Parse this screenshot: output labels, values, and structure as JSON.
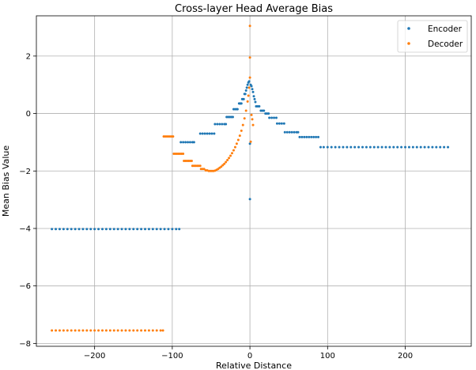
{
  "chart_data": {
    "type": "scatter",
    "title": "Cross-layer Head Average Bias",
    "xlabel": "Relative Distance",
    "ylabel": "Mean Bias Value",
    "xlim": [
      -275,
      285
    ],
    "ylim": [
      -8.1,
      3.4
    ],
    "xticks": [
      -200,
      -100,
      0,
      100,
      200
    ],
    "yticks": [
      -8,
      -6,
      -4,
      -2,
      0,
      2
    ],
    "xtick_labels": [
      "−200",
      "−100",
      "0",
      "100",
      "200"
    ],
    "ytick_labels": [
      "−8",
      "−6",
      "−4",
      "−2",
      "0",
      "2"
    ],
    "grid": true,
    "legend_position": "top-right",
    "series": [
      {
        "name": "Encoder",
        "color": "#1f77b4",
        "points": [
          [
            -255,
            -4.02
          ],
          [
            -250,
            -4.02
          ],
          [
            -245,
            -4.02
          ],
          [
            -240,
            -4.02
          ],
          [
            -235,
            -4.02
          ],
          [
            -230,
            -4.02
          ],
          [
            -225,
            -4.02
          ],
          [
            -220,
            -4.02
          ],
          [
            -215,
            -4.02
          ],
          [
            -210,
            -4.02
          ],
          [
            -205,
            -4.02
          ],
          [
            -200,
            -4.02
          ],
          [
            -195,
            -4.02
          ],
          [
            -190,
            -4.02
          ],
          [
            -185,
            -4.02
          ],
          [
            -180,
            -4.02
          ],
          [
            -175,
            -4.02
          ],
          [
            -170,
            -4.02
          ],
          [
            -165,
            -4.02
          ],
          [
            -160,
            -4.02
          ],
          [
            -155,
            -4.02
          ],
          [
            -150,
            -4.02
          ],
          [
            -145,
            -4.02
          ],
          [
            -140,
            -4.02
          ],
          [
            -135,
            -4.02
          ],
          [
            -130,
            -4.02
          ],
          [
            -125,
            -4.02
          ],
          [
            -120,
            -4.02
          ],
          [
            -115,
            -4.02
          ],
          [
            -110,
            -4.02
          ],
          [
            -105,
            -4.02
          ],
          [
            -100,
            -4.02
          ],
          [
            -95,
            -4.02
          ],
          [
            -91,
            -4.02
          ],
          [
            -89,
            -1.0
          ],
          [
            -86,
            -1.0
          ],
          [
            -83,
            -1.0
          ],
          [
            -80,
            -1.0
          ],
          [
            -77,
            -1.0
          ],
          [
            -74,
            -1.0
          ],
          [
            -72,
            -1.0
          ],
          [
            -64,
            -0.7
          ],
          [
            -61,
            -0.7
          ],
          [
            -58,
            -0.7
          ],
          [
            -55,
            -0.7
          ],
          [
            -52,
            -0.7
          ],
          [
            -49,
            -0.7
          ],
          [
            -46,
            -0.7
          ],
          [
            -45,
            -0.37
          ],
          [
            -42,
            -0.37
          ],
          [
            -39,
            -0.37
          ],
          [
            -36,
            -0.37
          ],
          [
            -33,
            -0.37
          ],
          [
            -31,
            -0.37
          ],
          [
            -30,
            -0.12
          ],
          [
            -28,
            -0.12
          ],
          [
            -26,
            -0.12
          ],
          [
            -24,
            -0.12
          ],
          [
            -22,
            -0.12
          ],
          [
            -21,
            0.15
          ],
          [
            -19,
            0.15
          ],
          [
            -17,
            0.15
          ],
          [
            -16,
            0.15
          ],
          [
            -14,
            0.35
          ],
          [
            -13,
            0.35
          ],
          [
            -12,
            0.35
          ],
          [
            -11,
            0.35
          ],
          [
            -10,
            0.5
          ],
          [
            -9,
            0.5
          ],
          [
            -8,
            0.5
          ],
          [
            -7,
            0.68
          ],
          [
            -6,
            0.68
          ],
          [
            -5,
            0.8
          ],
          [
            -4,
            0.9
          ],
          [
            -3,
            1.0
          ],
          [
            -2,
            1.08
          ],
          [
            -1,
            1.12
          ],
          [
            0,
            -1.05
          ],
          [
            0,
            -2.98
          ],
          [
            1,
            1.0
          ],
          [
            2,
            0.95
          ],
          [
            3,
            0.85
          ],
          [
            4,
            0.75
          ],
          [
            5,
            0.6
          ],
          [
            6,
            0.5
          ],
          [
            7,
            0.4
          ],
          [
            8,
            0.25
          ],
          [
            10,
            0.25
          ],
          [
            12,
            0.25
          ],
          [
            14,
            0.1
          ],
          [
            16,
            0.1
          ],
          [
            18,
            0.1
          ],
          [
            20,
            0.0
          ],
          [
            22,
            0.0
          ],
          [
            24,
            0.0
          ],
          [
            25,
            -0.15
          ],
          [
            28,
            -0.15
          ],
          [
            31,
            -0.15
          ],
          [
            34,
            -0.15
          ],
          [
            35,
            -0.35
          ],
          [
            38,
            -0.35
          ],
          [
            41,
            -0.35
          ],
          [
            44,
            -0.35
          ],
          [
            45,
            -0.65
          ],
          [
            48,
            -0.65
          ],
          [
            51,
            -0.65
          ],
          [
            54,
            -0.65
          ],
          [
            57,
            -0.65
          ],
          [
            60,
            -0.65
          ],
          [
            62,
            -0.65
          ],
          [
            64,
            -0.82
          ],
          [
            67,
            -0.82
          ],
          [
            70,
            -0.82
          ],
          [
            73,
            -0.82
          ],
          [
            76,
            -0.82
          ],
          [
            79,
            -0.82
          ],
          [
            82,
            -0.82
          ],
          [
            85,
            -0.82
          ],
          [
            88,
            -0.82
          ],
          [
            91,
            -1.17
          ],
          [
            95,
            -1.17
          ],
          [
            100,
            -1.17
          ],
          [
            105,
            -1.17
          ],
          [
            110,
            -1.17
          ],
          [
            115,
            -1.17
          ],
          [
            120,
            -1.17
          ],
          [
            125,
            -1.17
          ],
          [
            130,
            -1.17
          ],
          [
            135,
            -1.17
          ],
          [
            140,
            -1.17
          ],
          [
            145,
            -1.17
          ],
          [
            150,
            -1.17
          ],
          [
            155,
            -1.17
          ],
          [
            160,
            -1.17
          ],
          [
            165,
            -1.17
          ],
          [
            170,
            -1.17
          ],
          [
            175,
            -1.17
          ],
          [
            180,
            -1.17
          ],
          [
            185,
            -1.17
          ],
          [
            190,
            -1.17
          ],
          [
            195,
            -1.17
          ],
          [
            200,
            -1.17
          ],
          [
            205,
            -1.17
          ],
          [
            210,
            -1.17
          ],
          [
            215,
            -1.17
          ],
          [
            220,
            -1.17
          ],
          [
            225,
            -1.17
          ],
          [
            230,
            -1.17
          ],
          [
            235,
            -1.17
          ],
          [
            240,
            -1.17
          ],
          [
            245,
            -1.17
          ],
          [
            250,
            -1.17
          ],
          [
            255,
            -1.17
          ]
        ]
      },
      {
        "name": "Decoder",
        "color": "#ff7f0e",
        "points": [
          [
            -255,
            -7.55
          ],
          [
            -250,
            -7.55
          ],
          [
            -245,
            -7.55
          ],
          [
            -240,
            -7.55
          ],
          [
            -235,
            -7.55
          ],
          [
            -230,
            -7.55
          ],
          [
            -225,
            -7.55
          ],
          [
            -220,
            -7.55
          ],
          [
            -215,
            -7.55
          ],
          [
            -210,
            -7.55
          ],
          [
            -205,
            -7.55
          ],
          [
            -200,
            -7.55
          ],
          [
            -195,
            -7.55
          ],
          [
            -190,
            -7.55
          ],
          [
            -185,
            -7.55
          ],
          [
            -180,
            -7.55
          ],
          [
            -175,
            -7.55
          ],
          [
            -170,
            -7.55
          ],
          [
            -165,
            -7.55
          ],
          [
            -160,
            -7.55
          ],
          [
            -155,
            -7.55
          ],
          [
            -150,
            -7.55
          ],
          [
            -145,
            -7.55
          ],
          [
            -140,
            -7.55
          ],
          [
            -135,
            -7.55
          ],
          [
            -130,
            -7.55
          ],
          [
            -125,
            -7.55
          ],
          [
            -120,
            -7.55
          ],
          [
            -115,
            -7.55
          ],
          [
            -112,
            -7.55
          ],
          [
            -111,
            -0.8
          ],
          [
            -109,
            -0.8
          ],
          [
            -107,
            -0.8
          ],
          [
            -105,
            -0.8
          ],
          [
            -103,
            -0.8
          ],
          [
            -101,
            -0.8
          ],
          [
            -99,
            -0.8
          ],
          [
            -98,
            -1.4
          ],
          [
            -96,
            -1.4
          ],
          [
            -94,
            -1.4
          ],
          [
            -92,
            -1.4
          ],
          [
            -90,
            -1.4
          ],
          [
            -88,
            -1.4
          ],
          [
            -86,
            -1.4
          ],
          [
            -85,
            -1.65
          ],
          [
            -83,
            -1.65
          ],
          [
            -81,
            -1.65
          ],
          [
            -79,
            -1.65
          ],
          [
            -77,
            -1.65
          ],
          [
            -75,
            -1.65
          ],
          [
            -74,
            -1.82
          ],
          [
            -72,
            -1.82
          ],
          [
            -70,
            -1.82
          ],
          [
            -68,
            -1.82
          ],
          [
            -66,
            -1.82
          ],
          [
            -64,
            -1.82
          ],
          [
            -63,
            -1.93
          ],
          [
            -61,
            -1.93
          ],
          [
            -59,
            -1.93
          ],
          [
            -57,
            -1.98
          ],
          [
            -55,
            -1.98
          ],
          [
            -53,
            -2.0
          ],
          [
            -51,
            -2.0
          ],
          [
            -49,
            -2.0
          ],
          [
            -47,
            -2.0
          ],
          [
            -45,
            -1.99
          ],
          [
            -43,
            -1.96
          ],
          [
            -41,
            -1.93
          ],
          [
            -39,
            -1.89
          ],
          [
            -37,
            -1.85
          ],
          [
            -35,
            -1.8
          ],
          [
            -33,
            -1.75
          ],
          [
            -31,
            -1.69
          ],
          [
            -29,
            -1.62
          ],
          [
            -27,
            -1.55
          ],
          [
            -25,
            -1.47
          ],
          [
            -23,
            -1.38
          ],
          [
            -21,
            -1.28
          ],
          [
            -19,
            -1.17
          ],
          [
            -17,
            -1.05
          ],
          [
            -15,
            -0.92
          ],
          [
            -13,
            -0.77
          ],
          [
            -11,
            -0.6
          ],
          [
            -9,
            -0.4
          ],
          [
            -7,
            -0.17
          ],
          [
            -5,
            0.1
          ],
          [
            -3,
            0.42
          ],
          [
            -2,
            0.62
          ],
          [
            -1,
            0.9
          ],
          [
            0,
            3.05
          ],
          [
            0,
            1.95
          ],
          [
            0,
            1.25
          ],
          [
            1,
            -0.98
          ],
          [
            2,
            -0.05
          ],
          [
            3,
            -0.2
          ],
          [
            4,
            -0.4
          ]
        ]
      }
    ]
  }
}
